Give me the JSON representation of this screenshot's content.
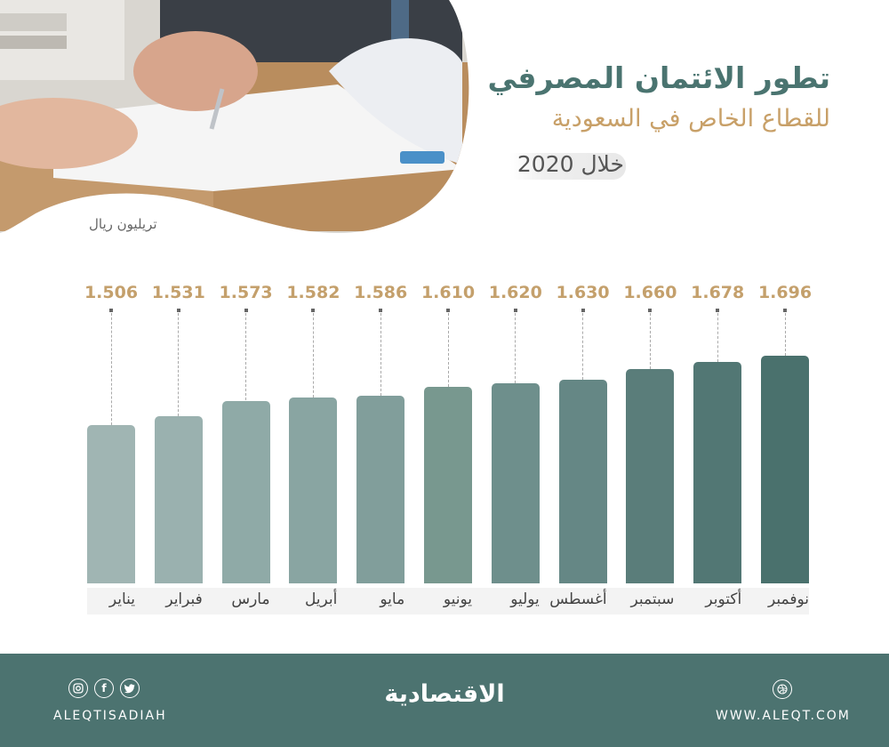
{
  "title": {
    "main": "تطور الائتمان المصرفي",
    "sub": "للقطاع الخاص في السعودية",
    "period": "خلال 2020"
  },
  "unit_label": "تريليون ريال",
  "footer": {
    "handle": "ALEQTISADIAH",
    "logo": "الاقتصادية",
    "website": "WWW.ALEQT.COM",
    "social_icons": [
      "instagram-icon",
      "facebook-icon",
      "twitter-icon"
    ],
    "background": "#4c7370"
  },
  "colors": {
    "title": "#4a7470",
    "subtitle": "#c8a068",
    "value_labels": "#c4a06c",
    "bar_light": "#a0b5b3",
    "bar_dark": "#4a716d"
  },
  "chart_data": {
    "type": "bar",
    "title": "تطور الائتمان المصرفي للقطاع الخاص في السعودية خلال 2020",
    "xlabel": "",
    "ylabel": "تريليون ريال",
    "categories": [
      "يناير",
      "فبراير",
      "مارس",
      "أبريل",
      "مايو",
      "يونيو",
      "يوليو",
      "أغسطس",
      "سبتمبر",
      "أكتوبر",
      "نوفمبر"
    ],
    "values": [
      1.506,
      1.531,
      1.573,
      1.582,
      1.586,
      1.61,
      1.62,
      1.63,
      1.66,
      1.678,
      1.696
    ],
    "value_labels": [
      "1.506",
      "1.531",
      "1.573",
      "1.582",
      "1.586",
      "1.610",
      "1.620",
      "1.630",
      "1.660",
      "1.678",
      "1.696"
    ],
    "grid": false,
    "legend": "none",
    "bar_colors": [
      "#a0b5b3",
      "#9ab1af",
      "#8faaa7",
      "#89a5a2",
      "#819e9b",
      "#78988f",
      "#6e8f8c",
      "#658785",
      "#5a7d7a",
      "#527774",
      "#4a716d"
    ]
  }
}
